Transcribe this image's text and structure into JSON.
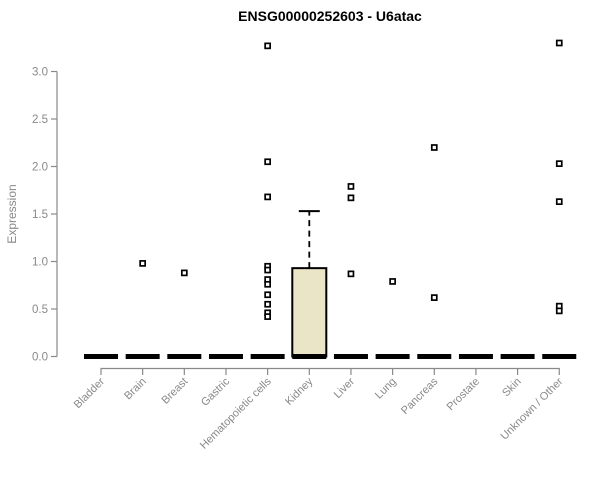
{
  "chart_data": {
    "type": "boxplot",
    "title": "ENSG00000252603 - U6atac",
    "ylabel": "Expression",
    "xlabel": "",
    "ylim": [
      0,
      3.35
    ],
    "yticks": [
      0.0,
      0.5,
      1.0,
      1.5,
      2.0,
      2.5,
      3.0
    ],
    "ytick_labels": [
      "0.0",
      "0.5",
      "1.0",
      "1.5",
      "2.0",
      "2.5",
      "3.0"
    ],
    "grid": false,
    "legend": "none",
    "categories": [
      "Bladder",
      "Brain",
      "Breast",
      "Gastric",
      "Hematopoietic cells",
      "Kidney",
      "Liver",
      "Lung",
      "Pancreas",
      "Prostate",
      "Skin",
      "Unknown / Other"
    ],
    "boxes": [
      {
        "category": "Bladder",
        "median": 0.0,
        "q1": 0.0,
        "q3": 0.0,
        "whisker_low": 0.0,
        "whisker_high": 0.0,
        "outliers": []
      },
      {
        "category": "Brain",
        "median": 0.0,
        "q1": 0.0,
        "q3": 0.0,
        "whisker_low": 0.0,
        "whisker_high": 0.0,
        "outliers": [
          0.98
        ]
      },
      {
        "category": "Breast",
        "median": 0.0,
        "q1": 0.0,
        "q3": 0.0,
        "whisker_low": 0.0,
        "whisker_high": 0.0,
        "outliers": [
          0.88
        ]
      },
      {
        "category": "Gastric",
        "median": 0.0,
        "q1": 0.0,
        "q3": 0.0,
        "whisker_low": 0.0,
        "whisker_high": 0.0,
        "outliers": []
      },
      {
        "category": "Hematopoietic cells",
        "median": 0.0,
        "q1": 0.0,
        "q3": 0.0,
        "whisker_low": 0.0,
        "whisker_high": 0.0,
        "outliers": [
          3.27,
          2.05,
          1.68,
          0.95,
          0.91,
          0.81,
          0.76,
          0.65,
          0.55,
          0.46,
          0.42
        ]
      },
      {
        "category": "Kidney",
        "median": 0.0,
        "q1": 0.0,
        "q3": 0.93,
        "whisker_low": 0.0,
        "whisker_high": 1.53,
        "outliers": []
      },
      {
        "category": "Liver",
        "median": 0.0,
        "q1": 0.0,
        "q3": 0.0,
        "whisker_low": 0.0,
        "whisker_high": 0.0,
        "outliers": [
          1.79,
          1.67,
          0.87
        ]
      },
      {
        "category": "Lung",
        "median": 0.0,
        "q1": 0.0,
        "q3": 0.0,
        "whisker_low": 0.0,
        "whisker_high": 0.0,
        "outliers": [
          0.79
        ]
      },
      {
        "category": "Pancreas",
        "median": 0.0,
        "q1": 0.0,
        "q3": 0.0,
        "whisker_low": 0.0,
        "whisker_high": 0.0,
        "outliers": [
          2.2,
          0.62
        ]
      },
      {
        "category": "Prostate",
        "median": 0.0,
        "q1": 0.0,
        "q3": 0.0,
        "whisker_low": 0.0,
        "whisker_high": 0.0,
        "outliers": []
      },
      {
        "category": "Skin",
        "median": 0.0,
        "q1": 0.0,
        "q3": 0.0,
        "whisker_low": 0.0,
        "whisker_high": 0.0,
        "outliers": []
      },
      {
        "category": "Unknown / Other",
        "median": 0.0,
        "q1": 0.0,
        "q3": 0.0,
        "whisker_low": 0.0,
        "whisker_high": 0.0,
        "outliers": [
          3.3,
          2.03,
          1.63,
          0.53,
          0.48
        ]
      }
    ],
    "colors": {
      "title": "#000000",
      "axis": "#898989",
      "box_fill": "#ebe5c7",
      "box_border": "#000000",
      "median": "#000000",
      "point_stroke": "#000000",
      "point_fill": "#ffffff",
      "background": "#ffffff"
    }
  }
}
